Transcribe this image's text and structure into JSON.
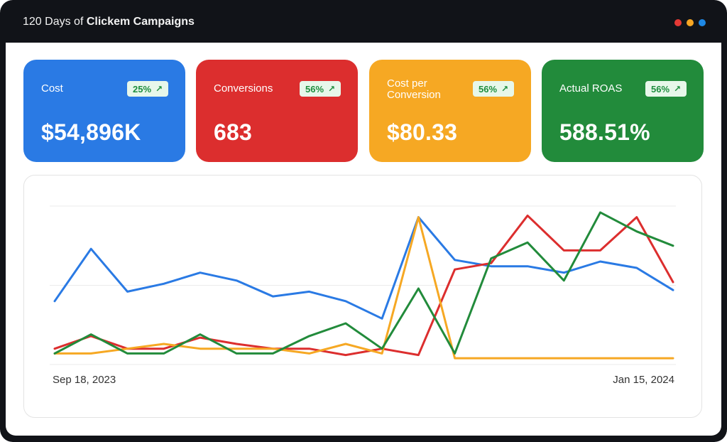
{
  "header": {
    "title_prefix": "120 Days of",
    "title_bold": "Clickem Campaigns",
    "dots": [
      "#e53935",
      "#f6a623",
      "#1e88e5"
    ]
  },
  "cards": [
    {
      "label": "Cost",
      "badge": "25%",
      "value": "$54,896K",
      "color": "#2a7ae4"
    },
    {
      "label": "Conversions",
      "badge": "56%",
      "value": "683",
      "color": "#dc2e2e"
    },
    {
      "label": "Cost per Conversion",
      "badge": "56%",
      "value": "$80.33",
      "color": "#f6a823"
    },
    {
      "label": "Actual ROAS",
      "badge": "56%",
      "value": "588.51%",
      "color": "#228b3b"
    }
  ],
  "chart_data": {
    "type": "line",
    "x_start_label": "Sep 18, 2023",
    "x_end_label": "Jan 15, 2024",
    "grid": true,
    "legend": "none",
    "ylim": [
      0,
      100
    ],
    "series": [
      {
        "color": "#2a7ae4",
        "values": [
          40,
          73,
          46,
          51,
          58,
          53,
          43,
          46,
          40,
          29,
          93,
          66,
          62,
          62,
          58,
          65,
          61,
          47
        ]
      },
      {
        "color": "#dc2e2e",
        "values": [
          10,
          18,
          10,
          10,
          17,
          13,
          10,
          10,
          6,
          10,
          6,
          60,
          64,
          94,
          72,
          72,
          93,
          52
        ]
      },
      {
        "color": "#f6a823",
        "values": [
          7,
          7,
          10,
          13,
          10,
          10,
          10,
          7,
          13,
          7,
          93,
          4,
          4,
          4,
          4,
          4,
          4,
          4
        ]
      },
      {
        "color": "#228b3b",
        "values": [
          7,
          19,
          7,
          7,
          19,
          7,
          7,
          18,
          26,
          10,
          48,
          7,
          67,
          77,
          53,
          96,
          84,
          75
        ]
      }
    ]
  }
}
